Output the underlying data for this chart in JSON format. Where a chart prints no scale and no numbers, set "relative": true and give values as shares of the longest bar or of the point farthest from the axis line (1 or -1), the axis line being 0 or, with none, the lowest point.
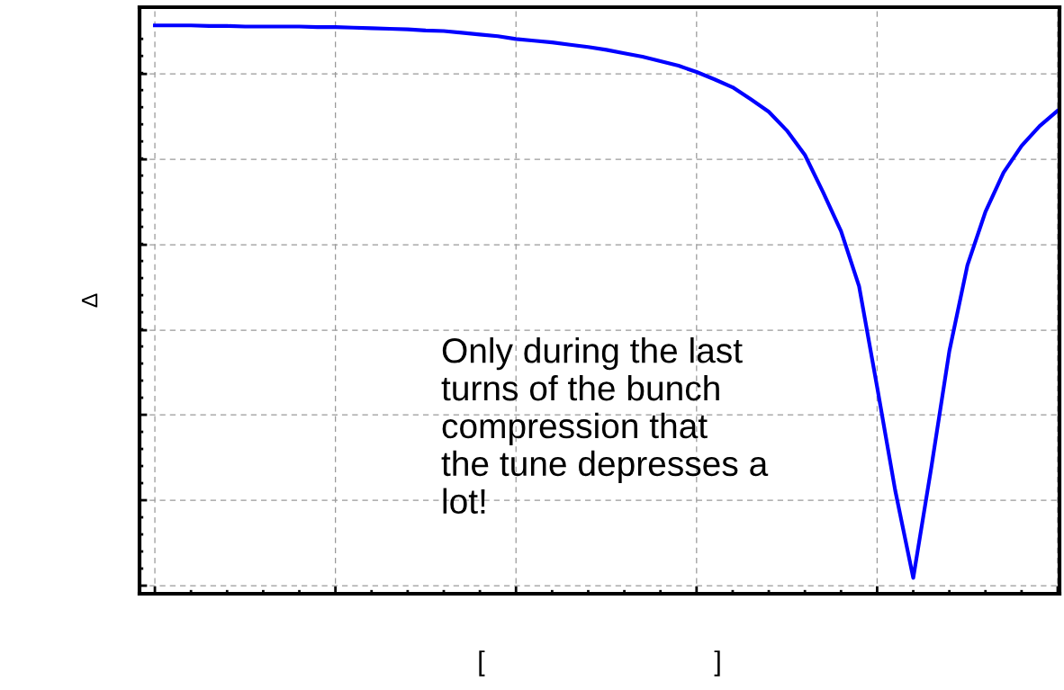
{
  "chart_data": {
    "type": "line",
    "relative": true,
    "ylabel": "Δ",
    "xlabel": "[                              ]",
    "categories": [
      null,
      null,
      null,
      null,
      null,
      null,
      null,
      null,
      null,
      null,
      null,
      null,
      null,
      null,
      null,
      null,
      null,
      null,
      null,
      null,
      null,
      null,
      null,
      null,
      null,
      null,
      null,
      null,
      null,
      null,
      null,
      null,
      null,
      null,
      null,
      null,
      null,
      null,
      null,
      null,
      null,
      null,
      null,
      null,
      null,
      null,
      null,
      null,
      null,
      null,
      null
    ],
    "series": [
      {
        "color": "#0000ff",
        "values": [
          1.0,
          1.0,
          1.0,
          0.999,
          0.999,
          0.998,
          0.998,
          0.998,
          0.998,
          0.997,
          0.997,
          0.996,
          0.995,
          0.994,
          0.993,
          0.991,
          0.99,
          0.987,
          0.984,
          0.981,
          0.976,
          0.973,
          0.97,
          0.966,
          0.962,
          0.957,
          0.951,
          0.945,
          0.937,
          0.929,
          0.918,
          0.905,
          0.891,
          0.87,
          0.848,
          0.815,
          0.772,
          0.707,
          0.638,
          0.541,
          0.364,
          0.182,
          0.028,
          0.222,
          0.427,
          0.578,
          0.672,
          0.741,
          0.788,
          0.823,
          0.85
        ]
      }
    ],
    "grid": true,
    "line_style": "solid",
    "marker": "none",
    "annotations": [
      "Only during the last\nturns of the bunch\ncompression that\nthe tune depresses a\nlot!"
    ]
  }
}
